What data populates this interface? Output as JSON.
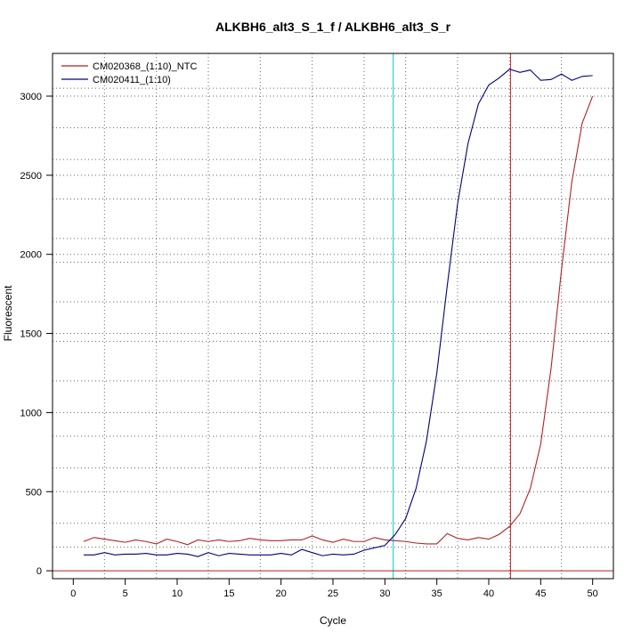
{
  "chart_data": {
    "type": "line",
    "title": "ALKBH6_alt3_S_1_f / ALKBH6_alt3_S_r",
    "xlabel": "Cycle",
    "ylabel": "Fluorescent",
    "xlim": [
      -2,
      52
    ],
    "ylim": [
      -50,
      3270
    ],
    "xticks": [
      0,
      5,
      10,
      15,
      20,
      25,
      30,
      35,
      40,
      45,
      50
    ],
    "yticks": [
      0,
      500,
      1000,
      1500,
      2000,
      2500,
      3000
    ],
    "grid": true,
    "legend_position": "top-left",
    "vertical_gridlines_x": [
      3,
      8,
      13,
      18,
      23,
      28,
      32,
      37,
      42,
      47
    ],
    "horizontal_gridlines_y": [
      150,
      300,
      650,
      850,
      1200,
      1450,
      1700,
      1950,
      2100,
      2350,
      2600,
      2800,
      3050
    ],
    "threshold_lines": [
      {
        "x": 30.8,
        "color": "#00cccc"
      },
      {
        "x": 42.1,
        "color": "#cc3333"
      }
    ],
    "baseline_y": 0,
    "baseline_color": "#b22222",
    "x": [
      1,
      2,
      3,
      4,
      5,
      6,
      7,
      8,
      9,
      10,
      11,
      12,
      13,
      14,
      15,
      16,
      17,
      18,
      19,
      20,
      21,
      22,
      23,
      24,
      25,
      26,
      27,
      28,
      29,
      30,
      31,
      32,
      33,
      34,
      35,
      36,
      37,
      38,
      39,
      40,
      41,
      42,
      43,
      44,
      45,
      46,
      47,
      48,
      49,
      50
    ],
    "series": [
      {
        "name": "CM020368_(1:10)_NTC",
        "color": "#b22222",
        "values": [
          185,
          210,
          200,
          190,
          180,
          195,
          185,
          170,
          200,
          185,
          165,
          195,
          185,
          195,
          185,
          190,
          205,
          195,
          190,
          190,
          195,
          195,
          220,
          195,
          180,
          200,
          185,
          185,
          210,
          195,
          190,
          185,
          175,
          170,
          170,
          235,
          205,
          195,
          210,
          200,
          230,
          280,
          360,
          520,
          800,
          1280,
          1900,
          2460,
          2830,
          3000
        ]
      },
      {
        "name": "CM020411_(1:10)",
        "color": "#000080",
        "values": [
          100,
          100,
          115,
          100,
          105,
          105,
          110,
          100,
          100,
          110,
          105,
          90,
          115,
          95,
          110,
          105,
          100,
          100,
          100,
          110,
          100,
          135,
          115,
          95,
          105,
          100,
          105,
          130,
          145,
          160,
          230,
          330,
          520,
          820,
          1250,
          1800,
          2320,
          2700,
          2950,
          3070,
          3115,
          3170,
          3150,
          3165,
          3100,
          3105,
          3140,
          3100,
          3125,
          3130
        ]
      }
    ]
  }
}
